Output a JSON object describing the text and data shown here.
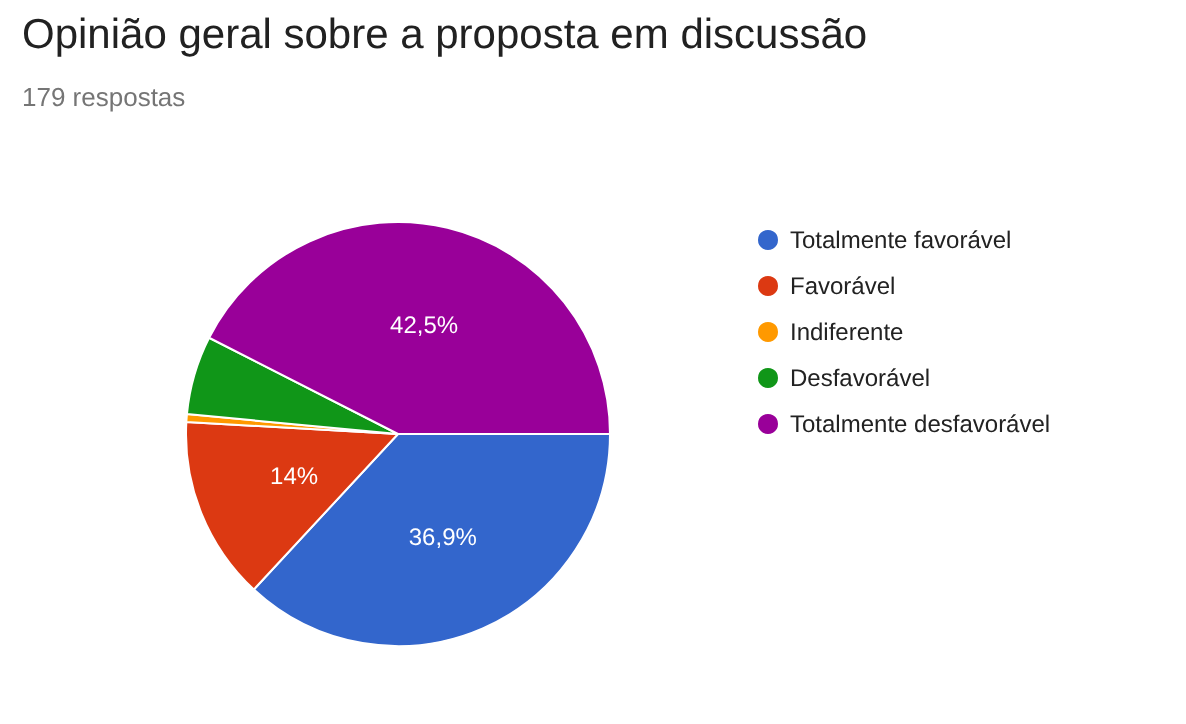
{
  "chart_data": {
    "type": "pie",
    "title": "Opinião geral sobre a proposta em discussão",
    "subtitle": "179 respostas",
    "categories": [
      "Totalmente favorável",
      "Favorável",
      "Indiferente",
      "Desfavorável",
      "Totalmente desfavorável"
    ],
    "values": [
      36.9,
      14,
      0.6,
      6,
      42.5
    ],
    "colors": [
      "#3366cc",
      "#dc3912",
      "#ff9900",
      "#109618",
      "#990099"
    ],
    "value_labels": [
      "36,9%",
      "14%",
      null,
      null,
      "42,5%"
    ],
    "legend": "right"
  }
}
